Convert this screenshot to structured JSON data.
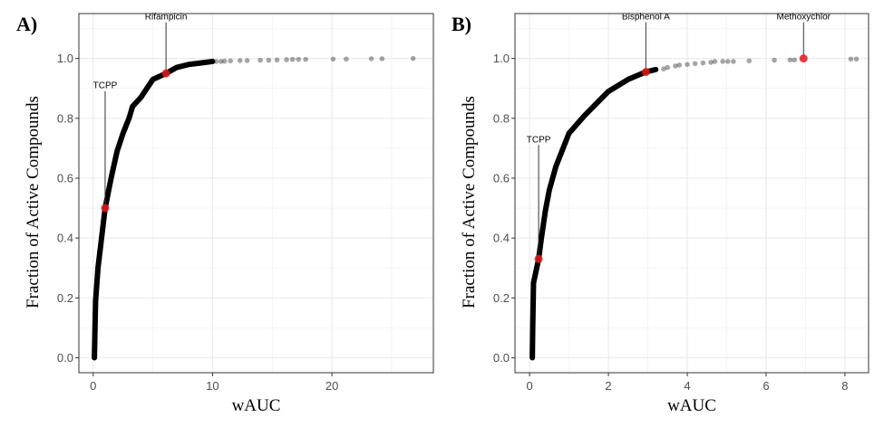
{
  "chart_data": [
    {
      "type": "scatter",
      "panel_label": "A)",
      "xlabel": "wAUC",
      "ylabel": "Fraction of Active Compounds",
      "xlim": [
        -1.2,
        28.5
      ],
      "ylim": [
        -0.05,
        1.15
      ],
      "xticks": [
        0,
        10,
        20
      ],
      "xtick_labels": [
        "0",
        "10",
        "20"
      ],
      "yticks": [
        0.0,
        0.2,
        0.4,
        0.6,
        0.8,
        1.0
      ],
      "ytick_labels": [
        "0.0",
        "0.2",
        "0.4",
        "0.6",
        "0.8",
        "1.0"
      ],
      "grid": true,
      "point_color": "#000000",
      "highlight_color": "#e41a1c",
      "curve": [
        [
          0.1,
          0
        ],
        [
          0.15,
          0.1
        ],
        [
          0.2,
          0.19
        ],
        [
          0.4,
          0.3
        ],
        [
          0.7,
          0.4
        ],
        [
          1.0,
          0.5
        ],
        [
          1.5,
          0.6
        ],
        [
          2.0,
          0.69
        ],
        [
          2.5,
          0.75
        ],
        [
          3.0,
          0.8
        ],
        [
          3.3,
          0.84
        ],
        [
          4.0,
          0.87
        ],
        [
          4.5,
          0.9
        ],
        [
          5.0,
          0.93
        ],
        [
          6.1,
          0.95
        ],
        [
          7.0,
          0.97
        ],
        [
          8.0,
          0.98
        ],
        [
          9.0,
          0.985
        ],
        [
          10.0,
          0.99
        ]
      ],
      "tail_points": [
        [
          10.3,
          0.99
        ],
        [
          10.7,
          0.99
        ],
        [
          11.0,
          0.991
        ],
        [
          11.5,
          0.992
        ],
        [
          12.3,
          0.993
        ],
        [
          12.9,
          0.993
        ],
        [
          14.0,
          0.994
        ],
        [
          14.7,
          0.994
        ],
        [
          15.4,
          0.995
        ],
        [
          16.2,
          0.996
        ],
        [
          16.7,
          0.997
        ],
        [
          17.2,
          0.997
        ],
        [
          17.8,
          0.997
        ],
        [
          20.1,
          0.998
        ],
        [
          21.2,
          0.998
        ],
        [
          23.3,
          0.999
        ],
        [
          24.2,
          0.999
        ],
        [
          26.8,
          1.0
        ]
      ],
      "highlights": [
        {
          "label": "TCPP",
          "x": 1.0,
          "y": 0.5,
          "label_y": 0.9
        },
        {
          "label": "Rifampicin",
          "x": 6.1,
          "y": 0.95,
          "label_y": 1.13
        }
      ]
    },
    {
      "type": "scatter",
      "panel_label": "B)",
      "xlabel": "wAUC",
      "ylabel": "Fraction of Active Compounds",
      "xlim": [
        -0.37,
        8.6
      ],
      "ylim": [
        -0.05,
        1.15
      ],
      "xticks": [
        0,
        2,
        4,
        6,
        8
      ],
      "xtick_labels": [
        "0",
        "2",
        "4",
        "6",
        "8"
      ],
      "yticks": [
        0.0,
        0.2,
        0.4,
        0.6,
        0.8,
        1.0
      ],
      "ytick_labels": [
        "0.0",
        "0.2",
        "0.4",
        "0.6",
        "0.8",
        "1.0"
      ],
      "grid": true,
      "point_color": "#000000",
      "highlight_color": "#e41a1c",
      "curve": [
        [
          0.07,
          0
        ],
        [
          0.08,
          0.1
        ],
        [
          0.1,
          0.25
        ],
        [
          0.23,
          0.33
        ],
        [
          0.3,
          0.4
        ],
        [
          0.4,
          0.49
        ],
        [
          0.5,
          0.56
        ],
        [
          0.67,
          0.64
        ],
        [
          0.85,
          0.7
        ],
        [
          1.0,
          0.75
        ],
        [
          1.4,
          0.81
        ],
        [
          1.7,
          0.85
        ],
        [
          2.0,
          0.89
        ],
        [
          2.5,
          0.93
        ],
        [
          2.95,
          0.955
        ],
        [
          3.2,
          0.963
        ]
      ],
      "tail_points": [
        [
          3.4,
          0.965
        ],
        [
          3.5,
          0.97
        ],
        [
          3.7,
          0.975
        ],
        [
          3.8,
          0.978
        ],
        [
          4.0,
          0.98
        ],
        [
          4.2,
          0.983
        ],
        [
          4.4,
          0.985
        ],
        [
          4.6,
          0.987
        ],
        [
          4.7,
          0.99
        ],
        [
          4.9,
          0.99
        ],
        [
          5.03,
          0.99
        ],
        [
          5.17,
          0.99
        ],
        [
          5.57,
          0.992
        ],
        [
          6.21,
          0.994
        ],
        [
          6.61,
          0.995
        ],
        [
          6.72,
          0.995
        ],
        [
          8.15,
          0.998
        ],
        [
          8.29,
          0.998
        ]
      ],
      "highlights": [
        {
          "label": "TCPP",
          "x": 0.23,
          "y": 0.33,
          "label_y": 0.72
        },
        {
          "label": "Bisphenol A",
          "x": 2.95,
          "y": 0.955,
          "label_y": 1.13
        },
        {
          "label": "Methoxychlor",
          "x": 6.95,
          "y": 1.0,
          "label_y": 1.13
        }
      ]
    }
  ]
}
